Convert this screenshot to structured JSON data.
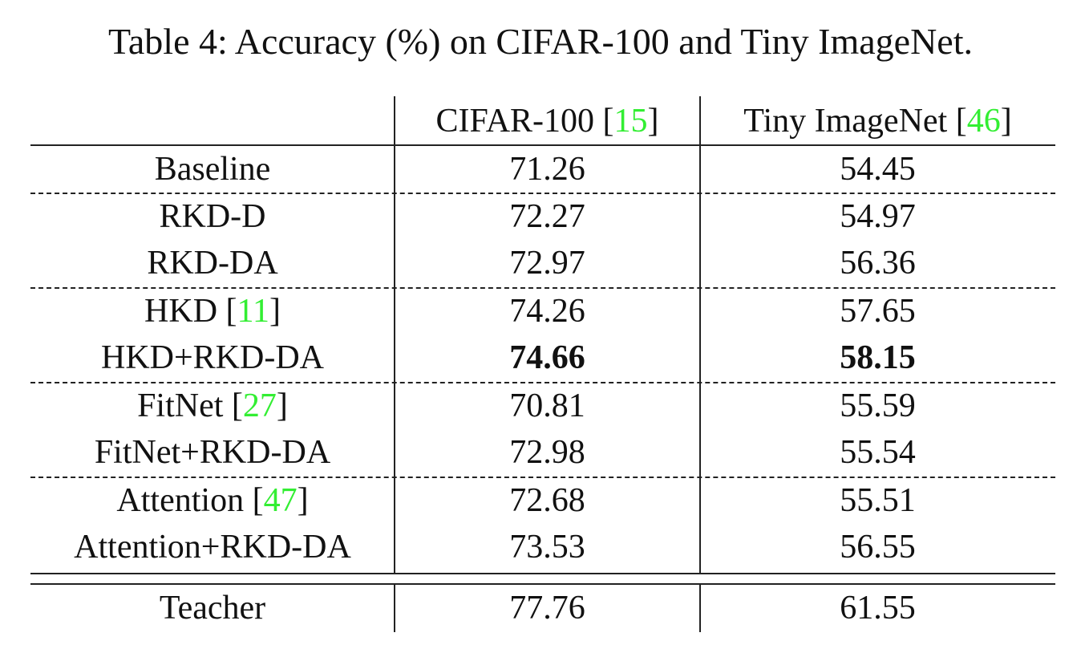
{
  "caption": "Table 4: Accuracy (%) on CIFAR-100 and Tiny ImageNet.",
  "header": {
    "col1_text": "CIFAR-100 [",
    "col1_ref": "15",
    "col1_close": "]",
    "col2_text": "Tiny ImageNet [",
    "col2_ref": "46",
    "col2_close": "]"
  },
  "rows": [
    {
      "name": "Baseline",
      "ref": "",
      "cifar": "71.26",
      "tiny": "54.45"
    },
    {
      "name": "RKD-D",
      "ref": "",
      "cifar": "72.27",
      "tiny": "54.97"
    },
    {
      "name": "RKD-DA",
      "ref": "",
      "cifar": "72.97",
      "tiny": "56.36"
    },
    {
      "name": "HKD [",
      "ref": "11",
      "close": "]",
      "cifar": "74.26",
      "tiny": "57.65"
    },
    {
      "name": "HKD+RKD-DA",
      "ref": "",
      "cifar": "74.66",
      "tiny": "58.15"
    },
    {
      "name": "FitNet [",
      "ref": "27",
      "close": "]",
      "cifar": "70.81",
      "tiny": "55.59"
    },
    {
      "name": "FitNet+RKD-DA",
      "ref": "",
      "cifar": "72.98",
      "tiny": "55.54"
    },
    {
      "name": "Attention [",
      "ref": "47",
      "close": "]",
      "cifar": "72.68",
      "tiny": "55.51"
    },
    {
      "name": "Attention+RKD-DA",
      "ref": "",
      "cifar": "73.53",
      "tiny": "56.55"
    }
  ],
  "teacher": {
    "name": "Teacher",
    "cifar": "77.76",
    "tiny": "61.55"
  },
  "colors": {
    "reference_link": "#33ee33"
  }
}
